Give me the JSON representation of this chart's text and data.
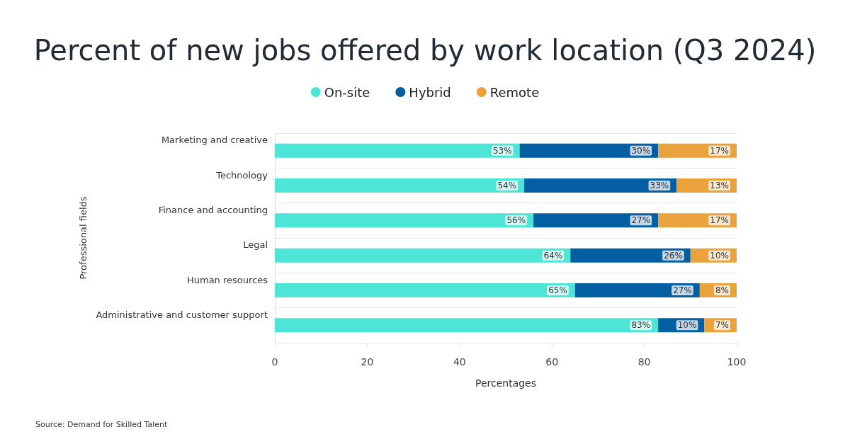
{
  "chart_data": {
    "type": "bar",
    "orientation": "horizontal",
    "stacked": true,
    "title": "Percent of new jobs offered by work location (Q3 2024)",
    "xlabel": "Percentages",
    "ylabel": "Professional fields",
    "categories": [
      "Marketing and creative",
      "Technology",
      "Finance and accounting",
      "Legal",
      "Human resources",
      "Administrative and customer support"
    ],
    "series": [
      {
        "name": "On-site",
        "color": "#4de6d6",
        "values": [
          53,
          54,
          56,
          64,
          65,
          83
        ],
        "value_labels": [
          "53%",
          "54%",
          "56%",
          "64%",
          "65%",
          "83%"
        ]
      },
      {
        "name": "Hybrid",
        "color": "#035fa2",
        "values": [
          30,
          33,
          27,
          26,
          27,
          10
        ],
        "value_labels": [
          "30%",
          "33%",
          "27%",
          "26%",
          "27%",
          "10%"
        ]
      },
      {
        "name": "Remote",
        "color": "#eaa33c",
        "values": [
          17,
          13,
          17,
          10,
          8,
          7
        ],
        "value_labels": [
          "17%",
          "13%",
          "17%",
          "10%",
          "8%",
          "7%"
        ]
      }
    ],
    "xlim": [
      0,
      100
    ],
    "xticks": [
      0,
      20,
      40,
      60,
      80,
      100
    ],
    "grid": "y",
    "legend": "top",
    "annotations": [
      "Source: Demand for Skilled Talent"
    ]
  }
}
